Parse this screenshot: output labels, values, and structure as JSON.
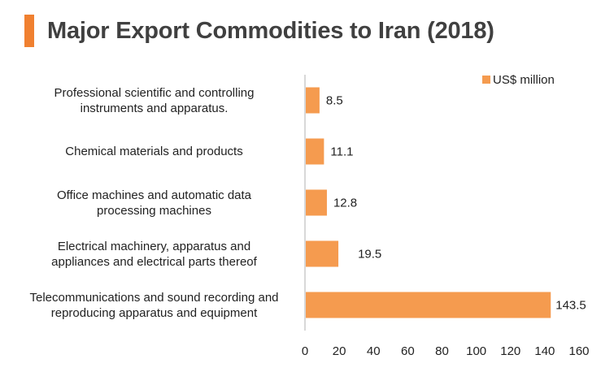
{
  "title": "Major Export Commodities to Iran (2018)",
  "colors": {
    "accent": "#F08030",
    "bar": "#F59B4F",
    "title": "#404040",
    "axis": "#B0B0B0"
  },
  "chart_data": {
    "type": "bar",
    "orientation": "horizontal",
    "title": "Major Export Commodities to Iran (2018)",
    "categories": [
      [
        "Professional scientific and controlling",
        "instruments and apparatus."
      ],
      [
        "Chemical materials and products"
      ],
      [
        "Office machines and automatic data",
        "processing machines"
      ],
      [
        "Electrical machinery, apparatus and",
        "appliances and electrical parts thereof"
      ],
      [
        "Telecommunications and sound recording and",
        "reproducing apparatus and equipment"
      ]
    ],
    "series": [
      {
        "name": "US$ million",
        "values": [
          8.5,
          11.1,
          12.8,
          19.5,
          143.5
        ]
      }
    ],
    "data_labels": [
      "8.5",
      "11.1",
      "12.8",
      "19.5",
      "143.5"
    ],
    "xlim": [
      0,
      160
    ],
    "xticks": [
      0,
      20,
      40,
      60,
      80,
      100,
      120,
      140,
      160
    ],
    "grid": false,
    "legend": "top-right"
  }
}
